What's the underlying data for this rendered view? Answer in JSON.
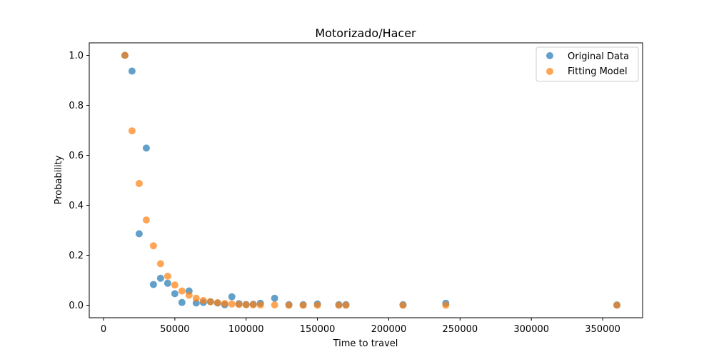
{
  "chart_data": {
    "type": "scatter",
    "title": "Motorizado/Hacer",
    "xlabel": "Time to travel",
    "ylabel": "Probability",
    "xlim": [
      -10000,
      378000
    ],
    "ylim": [
      -0.05,
      1.05
    ],
    "xticks": [
      0,
      50000,
      100000,
      150000,
      200000,
      250000,
      300000,
      350000
    ],
    "yticks": [
      0.0,
      0.2,
      0.4,
      0.6,
      0.8,
      1.0
    ],
    "xtick_labels": [
      "0",
      "50000",
      "100000",
      "150000",
      "200000",
      "250000",
      "300000",
      "350000"
    ],
    "ytick_labels": [
      "0.0",
      "0.2",
      "0.4",
      "0.6",
      "0.8",
      "1.0"
    ],
    "grid": false,
    "legend_position": "top-right",
    "series": [
      {
        "name": "Original Data",
        "color": "#1f77b4",
        "x": [
          15000,
          20000,
          25000,
          30000,
          35000,
          40000,
          45000,
          50000,
          55000,
          60000,
          65000,
          70000,
          75000,
          80000,
          85000,
          90000,
          95000,
          100000,
          105000,
          110000,
          120000,
          130000,
          140000,
          150000,
          165000,
          170000,
          210000,
          240000,
          360000
        ],
        "y": [
          1.0,
          0.937,
          0.286,
          0.629,
          0.083,
          0.108,
          0.088,
          0.046,
          0.011,
          0.057,
          0.009,
          0.011,
          0.014,
          0.009,
          0.002,
          0.034,
          0.006,
          0.003,
          0.004,
          0.008,
          0.028,
          0.002,
          0.002,
          0.005,
          0.002,
          0.002,
          0.002,
          0.008,
          0.001
        ]
      },
      {
        "name": "Fitting Model",
        "color": "#ff7f0e",
        "x": [
          15000,
          20000,
          25000,
          30000,
          35000,
          40000,
          45000,
          50000,
          55000,
          60000,
          65000,
          70000,
          75000,
          80000,
          85000,
          90000,
          95000,
          100000,
          105000,
          110000,
          120000,
          130000,
          140000,
          150000,
          165000,
          170000,
          210000,
          240000,
          360000
        ],
        "y": [
          1.0,
          0.698,
          0.487,
          0.341,
          0.238,
          0.166,
          0.116,
          0.081,
          0.057,
          0.04,
          0.028,
          0.019,
          0.014,
          0.01,
          0.007,
          0.005,
          0.003,
          0.002,
          0.002,
          0.001,
          0.001,
          0.0,
          0.0,
          0.0,
          0.0,
          0.0,
          0.0,
          0.0,
          0.0
        ]
      }
    ]
  }
}
